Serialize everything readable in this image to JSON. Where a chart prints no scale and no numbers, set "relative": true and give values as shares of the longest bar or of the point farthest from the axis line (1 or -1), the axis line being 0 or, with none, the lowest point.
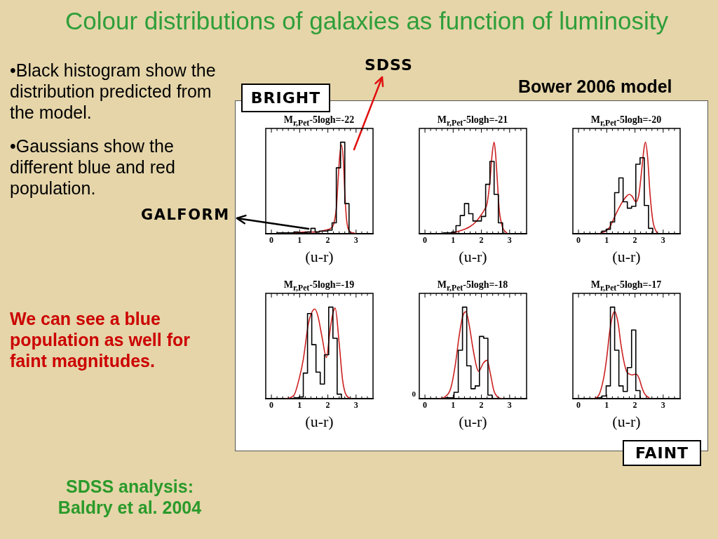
{
  "chart_data": [
    {
      "type": "other",
      "title": "Colour distributions of galaxies as function of luminosity",
      "annotations": [
        "•Black histogram show the distribution predicted from the model.",
        "•Gaussians show the different blue and red population.",
        "SDSS",
        "Bower 2006 model",
        "BRIGHT",
        "GALFORM",
        "We can see a blue population as well for faint magnitudes.",
        "FAINT",
        "SDSS analysis: Baldry et al. 2004"
      ]
    },
    {
      "type": "histogram",
      "title": "M$_{r,Pet}$-5logh=-22",
      "xlabel": "(u-r)",
      "relative": true,
      "xlim": [
        -0.2,
        3.6
      ],
      "xticks": [
        0,
        {
          "value": 0.2,
          "label": null
        },
        {
          "value": 0.4,
          "label": null
        },
        {
          "value": 0.6,
          "label": null
        },
        {
          "value": 0.8,
          "label": null
        },
        1,
        {
          "value": 1.2,
          "label": null
        },
        {
          "value": 1.4,
          "label": null
        },
        {
          "value": 1.6,
          "label": null
        },
        {
          "value": 1.8,
          "label": null
        },
        2,
        {
          "value": 2.2,
          "label": null
        },
        {
          "value": 2.4,
          "label": null
        },
        {
          "value": 2.6,
          "label": null
        },
        {
          "value": 2.8,
          "label": null
        },
        3,
        {
          "value": 3.2,
          "label": null
        },
        {
          "value": 3.4,
          "label": null
        }
      ],
      "series": [
        {
          "bins": [
            0.05,
            0.2,
            0.35,
            0.5,
            0.65,
            0.8,
            0.95,
            1.1,
            1.25,
            1.4,
            1.55,
            1.7,
            1.85,
            2.0,
            2.15,
            2.3,
            2.45,
            2.6,
            2.75,
            2.9
          ],
          "values": [
            0,
            0.01,
            0.01,
            0.01,
            0.01,
            0.02,
            0.01,
            0.01,
            0.02,
            0.06,
            0.02,
            0.03,
            0.03,
            0.04,
            0.12,
            0.72,
            1.0,
            0.33,
            0
          ],
          "color": "#000000"
        },
        {
          "type": "line",
          "x": [
            0.2,
            0.7,
            1.2,
            1.6,
            1.9,
            2.1,
            2.2,
            2.3,
            2.36,
            2.42,
            2.48,
            2.55,
            2.6,
            2.65,
            2.7,
            2.8,
            2.9,
            3.0
          ],
          "values": [
            0.01,
            0.01,
            0.02,
            0.02,
            0.04,
            0.06,
            0.1,
            0.28,
            0.57,
            0.85,
            0.97,
            0.8,
            0.45,
            0.2,
            0.08,
            0.02,
            0.01,
            0
          ],
          "color": "#cc2020"
        }
      ]
    },
    {
      "type": "histogram",
      "title": "M$_{r,Pet}$-5logh=-21",
      "xlabel": "(u-r)",
      "relative": true,
      "xlim": [
        -0.2,
        3.6
      ],
      "xticks": [
        0,
        {
          "value": 0.2,
          "label": null
        },
        {
          "value": 0.4,
          "label": null
        },
        {
          "value": 0.6,
          "label": null
        },
        {
          "value": 0.8,
          "label": null
        },
        1,
        {
          "value": 1.2,
          "label": null
        },
        {
          "value": 1.4,
          "label": null
        },
        {
          "value": 1.6,
          "label": null
        },
        {
          "value": 1.8,
          "label": null
        },
        2,
        {
          "value": 2.2,
          "label": null
        },
        {
          "value": 2.4,
          "label": null
        },
        {
          "value": 2.6,
          "label": null
        },
        {
          "value": 2.8,
          "label": null
        },
        3,
        {
          "value": 3.2,
          "label": null
        },
        {
          "value": 3.4,
          "label": null
        }
      ],
      "series": [
        {
          "bins": [
            0.5,
            0.65,
            0.8,
            0.95,
            1.1,
            1.25,
            1.4,
            1.55,
            1.7,
            1.85,
            2.0,
            2.15,
            2.3,
            2.45,
            2.6,
            2.75,
            2.9
          ],
          "values": [
            0,
            0.01,
            0.01,
            0.02,
            0.09,
            0.2,
            0.33,
            0.22,
            0.14,
            0.14,
            0.19,
            0.54,
            0.79,
            0.43,
            0.12,
            0
          ],
          "color": "#000000"
        },
        {
          "type": "line",
          "x": [
            0.6,
            1.0,
            1.2,
            1.4,
            1.6,
            1.8,
            2.0,
            2.1,
            2.2,
            2.3,
            2.38,
            2.45,
            2.5,
            2.55,
            2.63,
            2.75,
            2.9
          ],
          "values": [
            0,
            0.01,
            0.03,
            0.05,
            0.08,
            0.13,
            0.21,
            0.26,
            0.33,
            0.57,
            0.87,
            1.0,
            0.88,
            0.65,
            0.27,
            0.07,
            0.01
          ],
          "color": "#cc2020"
        }
      ]
    },
    {
      "type": "histogram",
      "title": "M$_{r,Pet}$-5logh=-20",
      "xlabel": "(u-r)",
      "relative": true,
      "xlim": [
        -0.2,
        3.6
      ],
      "xticks": [
        0,
        {
          "value": 0.2,
          "label": null
        },
        {
          "value": 0.4,
          "label": null
        },
        {
          "value": 0.6,
          "label": null
        },
        {
          "value": 0.8,
          "label": null
        },
        1,
        {
          "value": 1.2,
          "label": null
        },
        {
          "value": 1.4,
          "label": null
        },
        {
          "value": 1.6,
          "label": null
        },
        {
          "value": 1.8,
          "label": null
        },
        2,
        {
          "value": 2.2,
          "label": null
        },
        {
          "value": 2.4,
          "label": null
        },
        {
          "value": 2.6,
          "label": null
        },
        {
          "value": 2.8,
          "label": null
        },
        3,
        {
          "value": 3.2,
          "label": null
        },
        {
          "value": 3.4,
          "label": null
        }
      ],
      "series": [
        {
          "bins": [
            0.68,
            0.83,
            0.98,
            1.13,
            1.28,
            1.43,
            1.58,
            1.73,
            1.88,
            2.03,
            2.18,
            2.33,
            2.48,
            2.63,
            2.78
          ],
          "values": [
            0,
            0.03,
            0.05,
            0.13,
            0.45,
            0.61,
            0.35,
            0.28,
            0.3,
            0.76,
            0.83,
            0.31,
            0.06,
            0
          ],
          "color": "#000000"
        },
        {
          "type": "line",
          "x": [
            0.7,
            0.9,
            1.1,
            1.3,
            1.5,
            1.7,
            1.8,
            1.9,
            2.03,
            2.14,
            2.24,
            2.32,
            2.37,
            2.45,
            2.53,
            2.64,
            2.78
          ],
          "values": [
            0,
            0.02,
            0.07,
            0.2,
            0.32,
            0.41,
            0.43,
            0.41,
            0.35,
            0.43,
            0.7,
            0.93,
            1.0,
            0.83,
            0.45,
            0.13,
            0.01
          ],
          "color": "#cc2020"
        }
      ]
    },
    {
      "type": "histogram",
      "title": "M$_{r,Pet}$-5logh=-19",
      "xlabel": "(u-r)",
      "relative": true,
      "xlim": [
        -0.2,
        3.6
      ],
      "xticks": [
        0,
        {
          "value": 0.2,
          "label": null
        },
        {
          "value": 0.4,
          "label": null
        },
        {
          "value": 0.6,
          "label": null
        },
        {
          "value": 0.8,
          "label": null
        },
        1,
        {
          "value": 1.2,
          "label": null
        },
        {
          "value": 1.4,
          "label": null
        },
        {
          "value": 1.6,
          "label": null
        },
        {
          "value": 1.8,
          "label": null
        },
        2,
        {
          "value": 2.2,
          "label": null
        },
        {
          "value": 2.4,
          "label": null
        },
        {
          "value": 2.6,
          "label": null
        },
        {
          "value": 2.8,
          "label": null
        },
        3,
        {
          "value": 3.2,
          "label": null
        },
        {
          "value": 3.4,
          "label": null
        }
      ],
      "series": [
        {
          "bins": [
            0.68,
            0.83,
            0.98,
            1.13,
            1.28,
            1.43,
            1.58,
            1.73,
            1.88,
            2.03,
            2.18,
            2.33,
            2.48,
            2.63,
            2.78
          ],
          "values": [
            0,
            0.01,
            0.02,
            0.28,
            0.93,
            0.59,
            0.29,
            0.16,
            0.48,
            1.0,
            0.66,
            0.05,
            0,
            0
          ],
          "color": "#000000"
        },
        {
          "type": "line",
          "x": [
            0.5,
            0.8,
            1.0,
            1.13,
            1.3,
            1.4,
            1.54,
            1.65,
            1.79,
            1.95,
            2.07,
            2.17,
            2.26,
            2.4,
            2.52,
            2.65,
            2.85
          ],
          "values": [
            0,
            0.04,
            0.24,
            0.43,
            0.8,
            0.92,
            0.98,
            0.9,
            0.68,
            0.45,
            0.73,
            0.92,
            0.99,
            0.61,
            0.21,
            0.04,
            0
          ],
          "color": "#cc2020"
        }
      ]
    },
    {
      "type": "histogram",
      "title": "M$_{r,Pet}$-5logh=-18",
      "xlabel": "(u-r)",
      "relative": true,
      "xlim": [
        -0.2,
        3.6
      ],
      "xticks": [
        0,
        {
          "value": 0.2,
          "label": null
        },
        {
          "value": 0.4,
          "label": null
        },
        {
          "value": 0.6,
          "label": null
        },
        {
          "value": 0.8,
          "label": null
        },
        1,
        {
          "value": 1.2,
          "label": null
        },
        {
          "value": 1.4,
          "label": null
        },
        {
          "value": 1.6,
          "label": null
        },
        {
          "value": 1.8,
          "label": null
        },
        2,
        {
          "value": 2.2,
          "label": null
        },
        {
          "value": 2.4,
          "label": null
        },
        {
          "value": 2.6,
          "label": null
        },
        {
          "value": 2.8,
          "label": null
        },
        3,
        {
          "value": 3.2,
          "label": null
        },
        {
          "value": 3.4,
          "label": null
        }
      ],
      "annotations": [
        "0"
      ],
      "series": [
        {
          "bins": [
            0.58,
            0.73,
            0.88,
            1.03,
            1.18,
            1.33,
            1.48,
            1.63,
            1.78,
            1.93,
            2.08,
            2.23,
            2.38,
            2.53,
            2.68
          ],
          "values": [
            0,
            0.01,
            0.01,
            0.07,
            0.53,
            1.0,
            0.36,
            0.11,
            0.14,
            0.68,
            0.66,
            0.04,
            0,
            0
          ],
          "color": "#000000"
        },
        {
          "type": "line",
          "x": [
            0.5,
            0.7,
            0.91,
            1.08,
            1.2,
            1.33,
            1.45,
            1.57,
            1.7,
            1.82,
            1.9,
            2.07,
            2.2,
            2.32,
            2.44,
            2.57,
            2.75
          ],
          "values": [
            0,
            0.02,
            0.11,
            0.38,
            0.66,
            0.89,
            0.95,
            0.8,
            0.55,
            0.36,
            0.3,
            0.39,
            0.42,
            0.27,
            0.09,
            0.02,
            0
          ],
          "color": "#cc2020"
        }
      ]
    },
    {
      "type": "histogram",
      "title": "M$_{r,Pet}$-5logh=-17",
      "xlabel": "(u-r)",
      "relative": true,
      "xlim": [
        -0.2,
        3.6
      ],
      "xticks": [
        0,
        {
          "value": 0.2,
          "label": null
        },
        {
          "value": 0.4,
          "label": null
        },
        {
          "value": 0.6,
          "label": null
        },
        {
          "value": 0.8,
          "label": null
        },
        1,
        {
          "value": 1.2,
          "label": null
        },
        {
          "value": 1.4,
          "label": null
        },
        {
          "value": 1.6,
          "label": null
        },
        {
          "value": 1.8,
          "label": null
        },
        2,
        {
          "value": 2.2,
          "label": null
        },
        {
          "value": 2.4,
          "label": null
        },
        {
          "value": 2.6,
          "label": null
        },
        {
          "value": 2.8,
          "label": null
        },
        3,
        {
          "value": 3.2,
          "label": null
        },
        {
          "value": 3.4,
          "label": null
        }
      ],
      "series": [
        {
          "bins": [
            0.53,
            0.68,
            0.83,
            0.98,
            1.13,
            1.28,
            1.43,
            1.58,
            1.73,
            1.88,
            2.03,
            2.18,
            2.33,
            2.48
          ],
          "values": [
            0,
            0.01,
            0.03,
            0.14,
            1.0,
            0.53,
            0.14,
            0.08,
            0.34,
            0.75,
            0.09,
            0,
            0
          ],
          "color": "#000000"
        },
        {
          "type": "line",
          "x": [
            0.5,
            0.7,
            0.9,
            1.0,
            1.1,
            1.2,
            1.28,
            1.4,
            1.5,
            1.6,
            1.7,
            1.8,
            1.9,
            2.05,
            2.15,
            2.25,
            2.35,
            2.5
          ],
          "values": [
            0,
            0.03,
            0.24,
            0.45,
            0.72,
            0.9,
            0.95,
            0.83,
            0.6,
            0.42,
            0.3,
            0.27,
            0.26,
            0.27,
            0.22,
            0.12,
            0.05,
            0.01
          ],
          "color": "#cc2020"
        }
      ]
    }
  ]
}
